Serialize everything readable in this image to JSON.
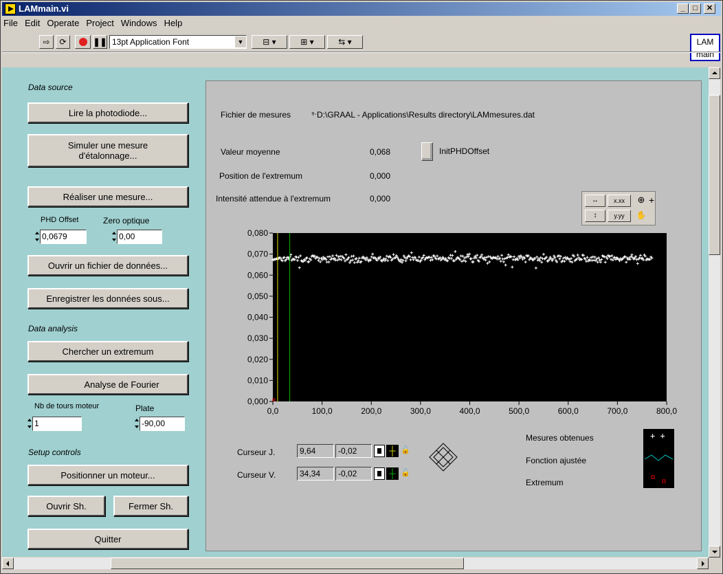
{
  "window": {
    "title": "LAMmain.vi",
    "minimize": "_",
    "maximize": "□",
    "close": "✕",
    "icon_label": "LAM main"
  },
  "menu": [
    "File",
    "Edit",
    "Operate",
    "Project",
    "Windows",
    "Help"
  ],
  "toolbar": {
    "font_select": "13pt Application Font",
    "buttons": [
      "run-arrow",
      "run-continuous",
      "abort",
      "pause",
      "align",
      "distribute",
      "reorder"
    ]
  },
  "left": {
    "data_source_label": "Data source",
    "btn_lire": "Lire la photodiode...",
    "btn_simuler": "Simuler une mesure d'étalonnage...",
    "btn_realiser": "Réaliser une mesure...",
    "phd_offset_label": "PHD Offset",
    "phd_offset_value": "0,0679",
    "zero_label": "Zero optique",
    "zero_value": "0,00",
    "btn_ouvrir_fichier": "Ouvrir un fichier de données...",
    "btn_enregistrer": "Enregistrer les données sous...",
    "analysis_label": "Data analysis",
    "btn_chercher": "Chercher un extremum",
    "btn_fourier": "Analyse de Fourier",
    "nb_tours_label": "Nb de tours moteur",
    "nb_tours_value": "1",
    "plate_label": "Plate",
    "plate_value": "-90,00",
    "setup_label": "Setup controls",
    "btn_positionner": "Positionner un moteur...",
    "btn_ouvrir_sh": "Ouvrir Sh.",
    "btn_fermer_sh": "Fermer Sh.",
    "btn_quitter": "Quitter"
  },
  "right": {
    "fichier_label": "Fichier de mesures",
    "fichier_path": "D:\\GRAAL - Applications\\Results directory\\LAMmesures.dat",
    "valeur_label": "Valeur moyenne",
    "valeur_value": "0,068",
    "init_label": "InitPHDOffset",
    "position_label": "Position de l'extremum",
    "position_value": "0,000",
    "intensite_label": "Intensité attendue à l'extremum",
    "intensite_value": "0,000",
    "palette": {
      "x_format": "x.xx",
      "y_format": "y.yy"
    },
    "cursor1": {
      "label": "Curseur J.",
      "x": "9,64",
      "y": "-0,02"
    },
    "cursor2": {
      "label": "Curseur V.",
      "x": "34,34",
      "y": "-0,02"
    },
    "legend": [
      "Mesures obtenues",
      "Fonction ajustée",
      "Extremum"
    ]
  },
  "chart_data": {
    "type": "scatter",
    "ylim": [
      0,
      0.08
    ],
    "xlim": [
      0,
      800
    ],
    "y_ticks": [
      "0,080",
      "0,070",
      "0,060",
      "0,050",
      "0,040",
      "0,030",
      "0,020",
      "0,010",
      "0,000"
    ],
    "x_ticks": [
      "0,0",
      "100,0",
      "200,0",
      "300,0",
      "400,0",
      "500,0",
      "600,0",
      "700,0",
      "800,0"
    ],
    "series": [
      {
        "name": "Mesures obtenues",
        "x_range": [
          0,
          770
        ],
        "y_mean": 0.068,
        "y_spread": 0.0025,
        "points": 400
      }
    ],
    "cursors": [
      {
        "name": "Curseur J.",
        "x": 9.64,
        "color": "#e0e000"
      },
      {
        "name": "Curseur V.",
        "x": 34.34,
        "color": "#00c000"
      }
    ]
  }
}
